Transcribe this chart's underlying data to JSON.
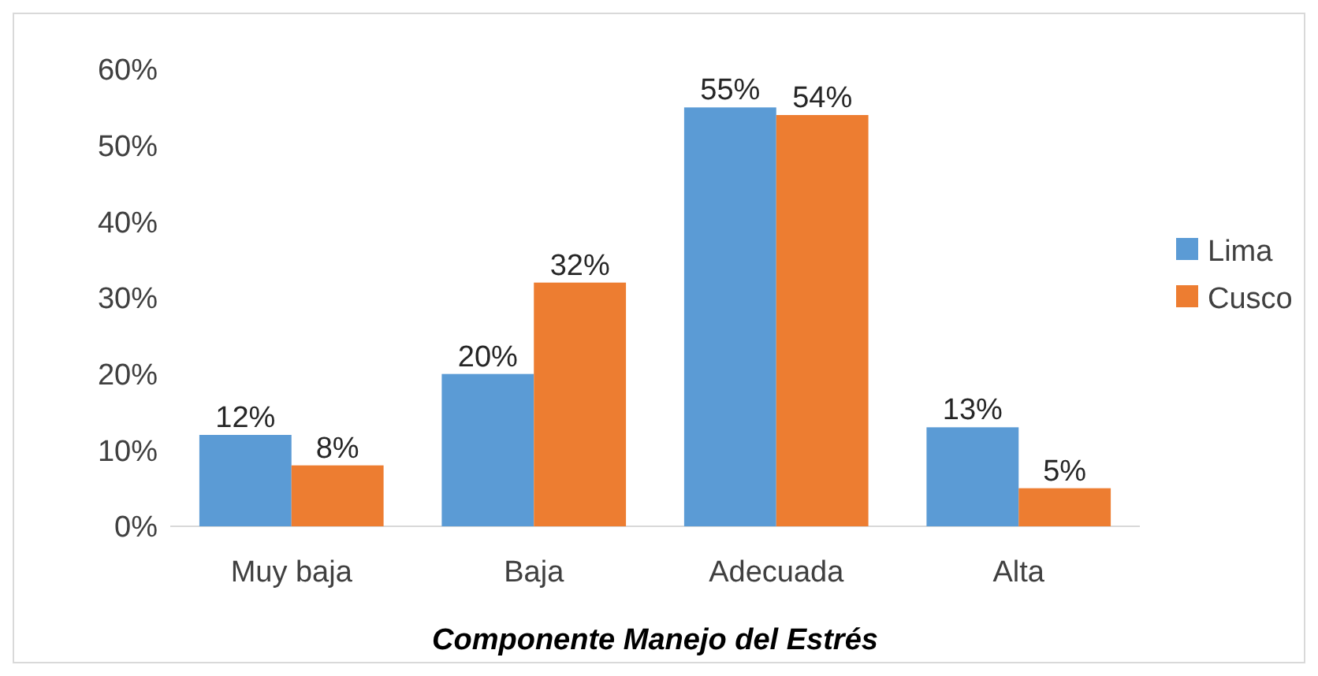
{
  "chart_data": {
    "type": "bar",
    "xlabel": "Componente Manejo del Estrés",
    "categories": [
      "Muy baja",
      "Baja",
      "Adecuada",
      "Alta"
    ],
    "series": [
      {
        "name": "Lima",
        "color": "#5b9bd5",
        "values": [
          12,
          20,
          55,
          13
        ],
        "value_labels": [
          "12%",
          "20%",
          "55%",
          "13%"
        ]
      },
      {
        "name": "Cusco",
        "color": "#ed7d31",
        "values": [
          8,
          32,
          54,
          5
        ],
        "value_labels": [
          "8%",
          "32%",
          "54%",
          "5%"
        ]
      }
    ],
    "ylim": [
      0,
      60
    ],
    "yticks": [
      {
        "value": 0,
        "label": "0%"
      },
      {
        "value": 10,
        "label": "10%"
      },
      {
        "value": 20,
        "label": "20%"
      },
      {
        "value": 30,
        "label": "30%"
      },
      {
        "value": 40,
        "label": "40%"
      },
      {
        "value": 50,
        "label": "50%"
      },
      {
        "value": 60,
        "label": "60%"
      }
    ],
    "legend": "right"
  }
}
